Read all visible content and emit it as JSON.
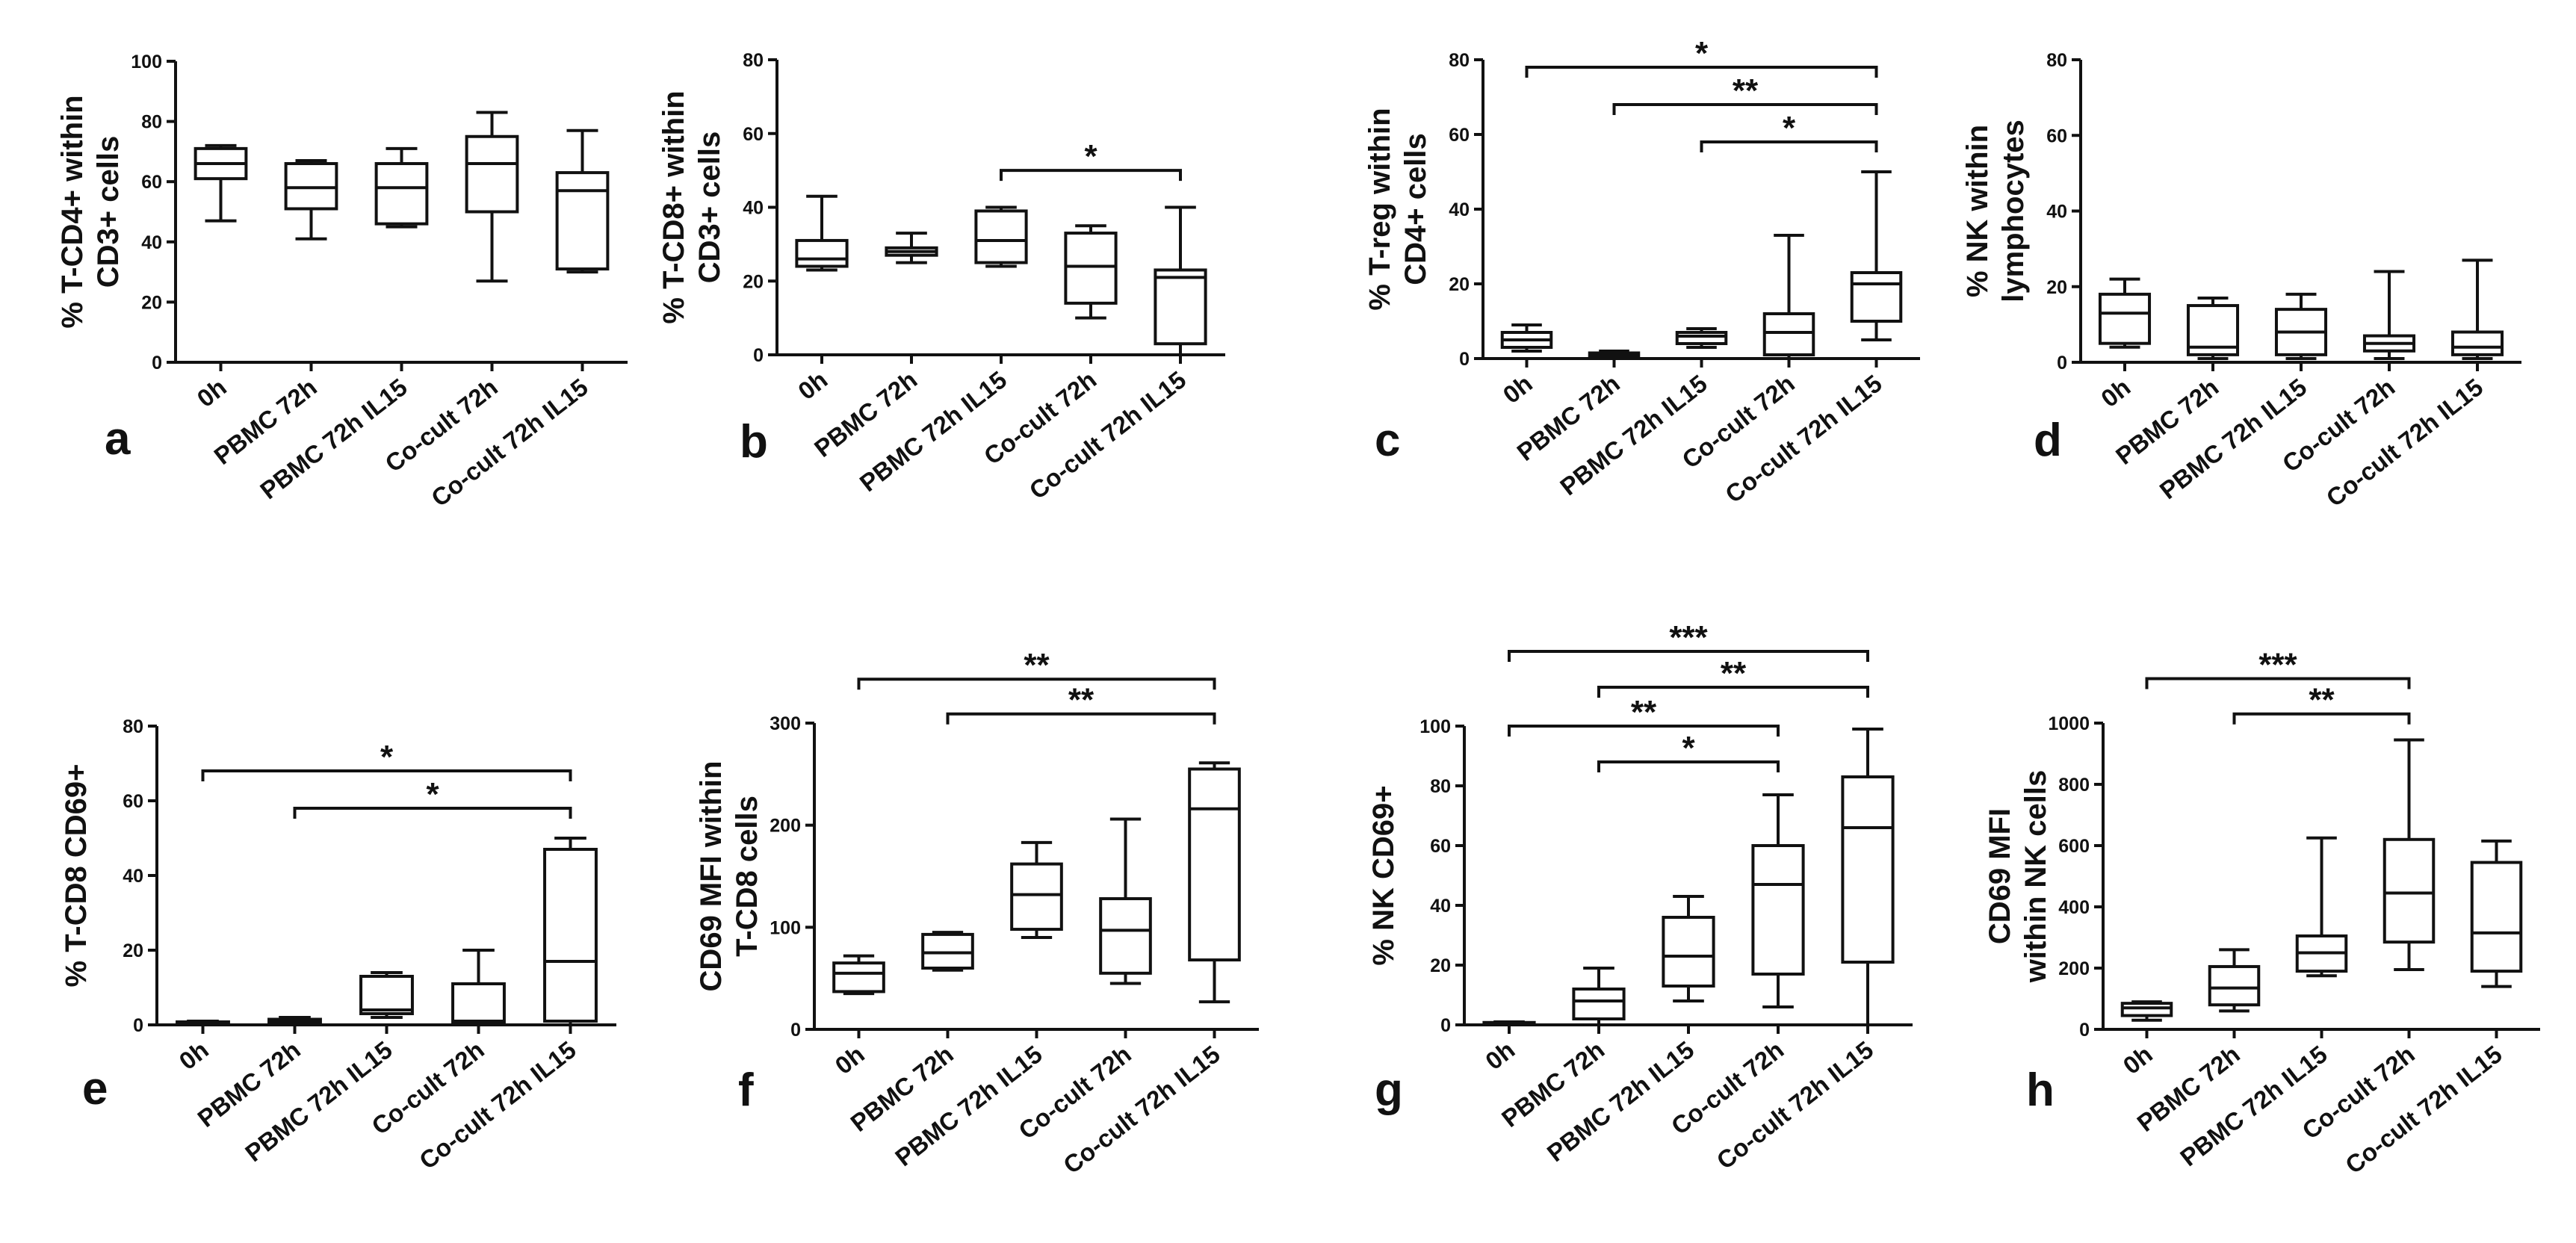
{
  "chart_data": [
    {
      "panel": "a",
      "type": "box",
      "ylabel_lines": [
        "% T-CD4+ within",
        "CD3+ cells"
      ],
      "ylim": [
        0,
        100
      ],
      "yticks": [
        0,
        20,
        40,
        60,
        80,
        100
      ],
      "categories": [
        "0h",
        "PBMC 72h",
        "PBMC 72h IL15",
        "Co-cult 72h",
        "Co-cult 72h IL15"
      ],
      "boxes": [
        {
          "min": 47,
          "q1": 61,
          "median": 66,
          "q3": 71,
          "max": 72
        },
        {
          "min": 41,
          "q1": 51,
          "median": 58,
          "q3": 66,
          "max": 67
        },
        {
          "min": 45,
          "q1": 46,
          "median": 58,
          "q3": 66,
          "max": 71
        },
        {
          "min": 27,
          "q1": 50,
          "median": 66,
          "q3": 75,
          "max": 83
        },
        {
          "min": 30,
          "q1": 31,
          "median": 57,
          "q3": 63,
          "max": 77
        }
      ],
      "significance": []
    },
    {
      "panel": "b",
      "type": "box",
      "ylabel_lines": [
        "% T-CD8+ within",
        "CD3+ cells"
      ],
      "ylim": [
        0,
        80
      ],
      "yticks": [
        0,
        20,
        40,
        60,
        80
      ],
      "categories": [
        "0h",
        "PBMC 72h",
        "PBMC 72h IL15",
        "Co-cult 72h",
        "Co-cult 72h IL15"
      ],
      "boxes": [
        {
          "min": 23,
          "q1": 24,
          "median": 26,
          "q3": 31,
          "max": 43
        },
        {
          "min": 25,
          "q1": 27,
          "median": 28,
          "q3": 29,
          "max": 33
        },
        {
          "min": 24,
          "q1": 25,
          "median": 31,
          "q3": 39,
          "max": 40
        },
        {
          "min": 10,
          "q1": 14,
          "median": 24,
          "q3": 33,
          "max": 35
        },
        {
          "min": 0,
          "q1": 3,
          "median": 21,
          "q3": 23,
          "max": 40
        }
      ],
      "significance": [
        {
          "from": 2,
          "to": 4,
          "label": "*",
          "level": 50
        }
      ]
    },
    {
      "panel": "c",
      "type": "box",
      "ylabel_lines": [
        "% T-reg within",
        "CD4+ cells"
      ],
      "ylim": [
        0,
        80
      ],
      "yticks": [
        0,
        20,
        40,
        60,
        80
      ],
      "categories": [
        "0h",
        "PBMC 72h",
        "PBMC 72h IL15",
        "Co-cult 72h",
        "Co-cult 72h IL15"
      ],
      "boxes": [
        {
          "min": 2,
          "q1": 3,
          "median": 5,
          "q3": 7,
          "max": 9
        },
        {
          "min": 0,
          "q1": 0.5,
          "median": 1,
          "q3": 1.5,
          "max": 2
        },
        {
          "min": 3,
          "q1": 4,
          "median": 6,
          "q3": 7,
          "max": 8
        },
        {
          "min": 0,
          "q1": 1,
          "median": 7,
          "q3": 12,
          "max": 33
        },
        {
          "min": 5,
          "q1": 10,
          "median": 20,
          "q3": 23,
          "max": 50
        }
      ],
      "significance": [
        {
          "from": 0,
          "to": 4,
          "label": "*",
          "level": 78
        },
        {
          "from": 1,
          "to": 4,
          "label": "**",
          "level": 68
        },
        {
          "from": 2,
          "to": 4,
          "label": "*",
          "level": 58
        }
      ]
    },
    {
      "panel": "d",
      "type": "box",
      "ylabel_lines": [
        "% NK within",
        "lymphocytes"
      ],
      "ylim": [
        0,
        80
      ],
      "yticks": [
        0,
        20,
        40,
        60,
        80
      ],
      "categories": [
        "0h",
        "PBMC 72h",
        "PBMC 72h IL15",
        "Co-cult 72h",
        "Co-cult 72h IL15"
      ],
      "boxes": [
        {
          "min": 4,
          "q1": 5,
          "median": 13,
          "q3": 18,
          "max": 22
        },
        {
          "min": 1,
          "q1": 2,
          "median": 4,
          "q3": 15,
          "max": 17
        },
        {
          "min": 1,
          "q1": 2,
          "median": 8,
          "q3": 14,
          "max": 18
        },
        {
          "min": 1,
          "q1": 3,
          "median": 5,
          "q3": 7,
          "max": 24
        },
        {
          "min": 1,
          "q1": 2,
          "median": 4,
          "q3": 8,
          "max": 27
        }
      ],
      "significance": []
    },
    {
      "panel": "e",
      "type": "box",
      "ylabel_lines": [
        "% T-CD8 CD69+"
      ],
      "ylim": [
        0,
        80
      ],
      "yticks": [
        0,
        20,
        40,
        60,
        80
      ],
      "categories": [
        "0h",
        "PBMC 72h",
        "PBMC 72h IL15",
        "Co-cult 72h",
        "Co-cult 72h IL15"
      ],
      "boxes": [
        {
          "min": 0,
          "q1": 0.2,
          "median": 0.5,
          "q3": 0.8,
          "max": 1
        },
        {
          "min": 0,
          "q1": 0.5,
          "median": 1,
          "q3": 1.5,
          "max": 2
        },
        {
          "min": 2,
          "q1": 3,
          "median": 4,
          "q3": 13,
          "max": 14
        },
        {
          "min": 0,
          "q1": 0.5,
          "median": 1,
          "q3": 11,
          "max": 20
        },
        {
          "min": 0,
          "q1": 1,
          "median": 17,
          "q3": 47,
          "max": 50
        }
      ],
      "significance": [
        {
          "from": 0,
          "to": 4,
          "label": "*",
          "level": 68
        },
        {
          "from": 1,
          "to": 4,
          "label": "*",
          "level": 58
        }
      ]
    },
    {
      "panel": "f",
      "type": "box",
      "ylabel_lines": [
        "CD69 MFI within",
        "T-CD8 cells"
      ],
      "ylim": [
        0,
        300
      ],
      "yticks": [
        0,
        100,
        200,
        300
      ],
      "categories": [
        "0h",
        "PBMC 72h",
        "PBMC 72h IL15",
        "Co-cult 72h",
        "Co-cult 72h IL15"
      ],
      "boxes": [
        {
          "min": 35,
          "q1": 37,
          "median": 55,
          "q3": 65,
          "max": 72
        },
        {
          "min": 58,
          "q1": 60,
          "median": 75,
          "q3": 93,
          "max": 95
        },
        {
          "min": 90,
          "q1": 98,
          "median": 132,
          "q3": 162,
          "max": 183
        },
        {
          "min": 45,
          "q1": 55,
          "median": 97,
          "q3": 128,
          "max": 206
        },
        {
          "min": 27,
          "q1": 68,
          "median": 216,
          "q3": 255,
          "max": 261
        }
      ],
      "significance": [
        {
          "from": 0,
          "to": 4,
          "label": "**",
          "level": 343
        },
        {
          "from": 1,
          "to": 4,
          "label": "**",
          "level": 309
        }
      ]
    },
    {
      "panel": "g",
      "type": "box",
      "ylabel_lines": [
        "% NK CD69+"
      ],
      "ylim": [
        0,
        100
      ],
      "yticks": [
        0,
        20,
        40,
        60,
        80,
        100
      ],
      "categories": [
        "0h",
        "PBMC 72h",
        "PBMC 72h IL15",
        "Co-cult 72h",
        "Co-cult 72h IL15"
      ],
      "boxes": [
        {
          "min": 0,
          "q1": 0.2,
          "median": 0.5,
          "q3": 0.8,
          "max": 1
        },
        {
          "min": 0,
          "q1": 2,
          "median": 8,
          "q3": 12,
          "max": 19
        },
        {
          "min": 8,
          "q1": 13,
          "median": 23,
          "q3": 36,
          "max": 43
        },
        {
          "min": 6,
          "q1": 17,
          "median": 47,
          "q3": 60,
          "max": 77
        },
        {
          "min": 0,
          "q1": 21,
          "median": 66,
          "q3": 83,
          "max": 99
        }
      ],
      "significance": [
        {
          "from": 0,
          "to": 4,
          "label": "***",
          "level": 125
        },
        {
          "from": 1,
          "to": 4,
          "label": "**",
          "level": 113
        },
        {
          "from": 0,
          "to": 3,
          "label": "**",
          "level": 100
        },
        {
          "from": 1,
          "to": 3,
          "label": "*",
          "level": 88
        }
      ]
    },
    {
      "panel": "h",
      "type": "box",
      "ylabel_lines": [
        "CD69 MFI",
        "within NK cells"
      ],
      "ylim": [
        0,
        1000
      ],
      "yticks": [
        0,
        200,
        400,
        600,
        800,
        1000
      ],
      "categories": [
        "0h",
        "PBMC 72h",
        "PBMC 72h IL15",
        "Co-cult 72h",
        "Co-cult 72h IL15"
      ],
      "boxes": [
        {
          "min": 30,
          "q1": 45,
          "median": 70,
          "q3": 85,
          "max": 90
        },
        {
          "min": 60,
          "q1": 80,
          "median": 135,
          "q3": 205,
          "max": 260
        },
        {
          "min": 175,
          "q1": 190,
          "median": 250,
          "q3": 305,
          "max": 625
        },
        {
          "min": 195,
          "q1": 285,
          "median": 445,
          "q3": 620,
          "max": 945
        },
        {
          "min": 140,
          "q1": 190,
          "median": 315,
          "q3": 545,
          "max": 615
        }
      ],
      "significance": [
        {
          "from": 0,
          "to": 3,
          "label": "***",
          "level": 1145
        },
        {
          "from": 1,
          "to": 3,
          "label": "**",
          "level": 1030
        }
      ]
    }
  ]
}
